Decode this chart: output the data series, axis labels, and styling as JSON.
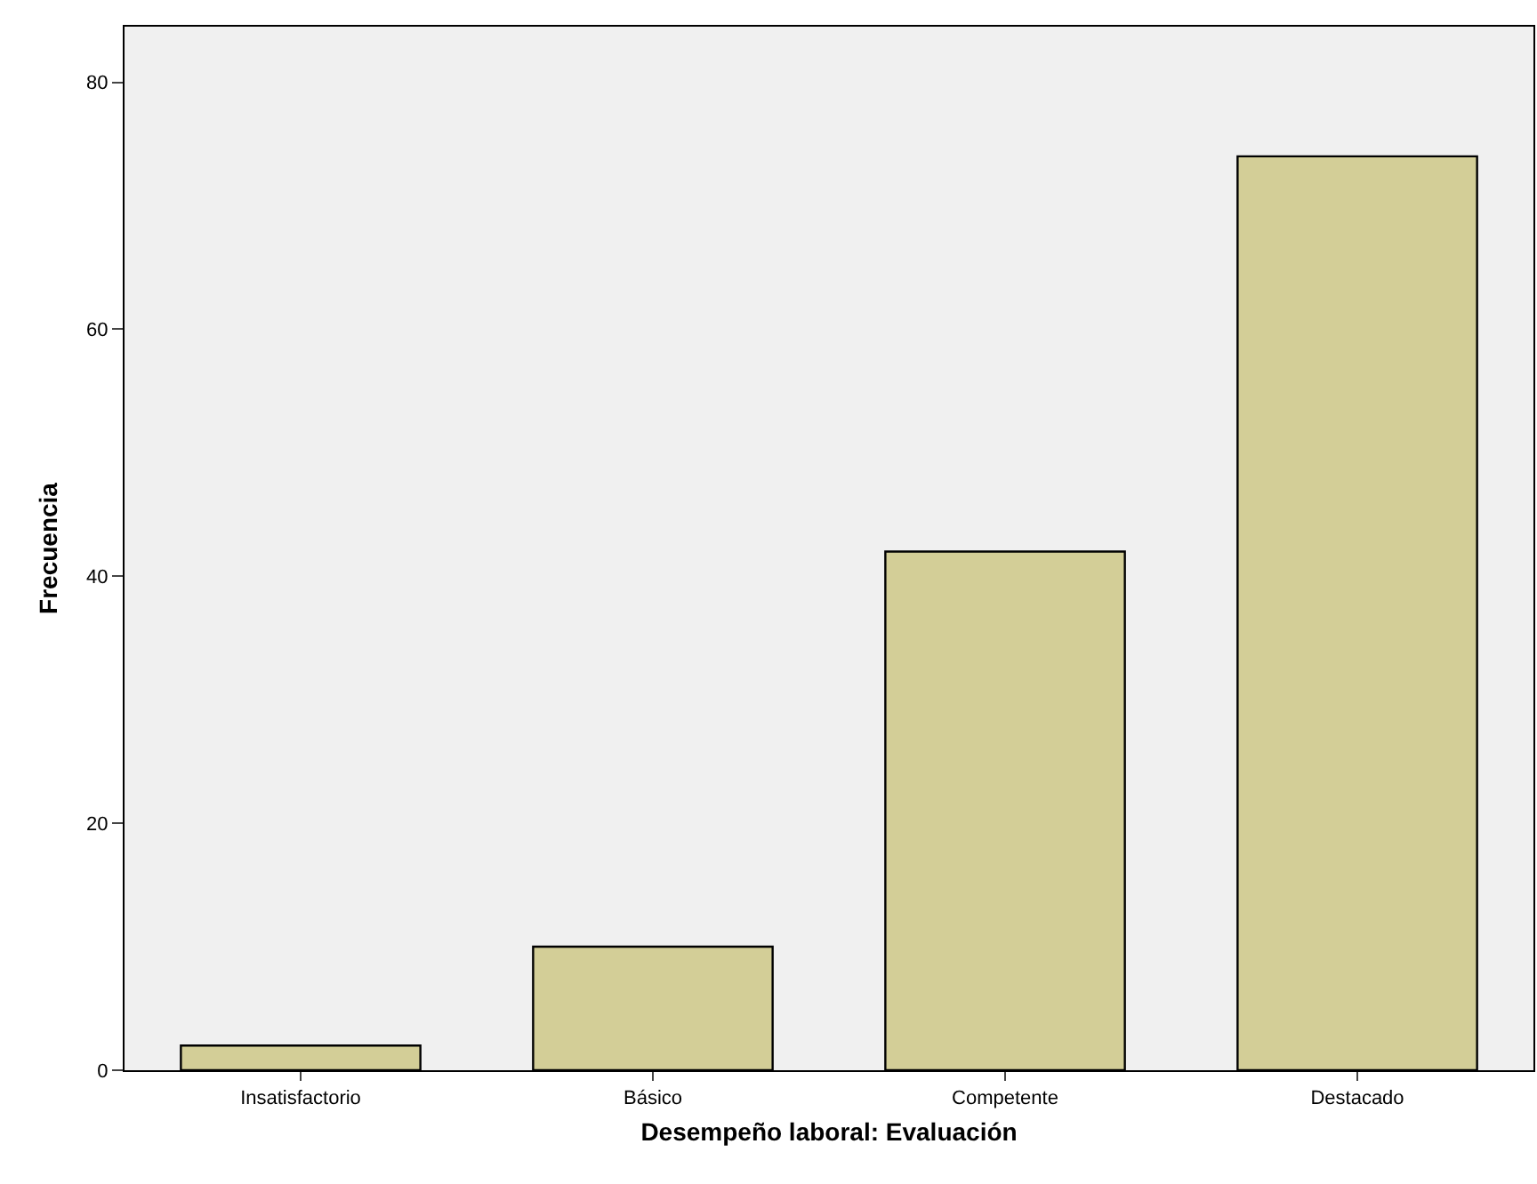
{
  "chart_data": {
    "type": "bar",
    "xlabel": "Desempeño laboral: Evaluación",
    "ylabel": "Frecuencia",
    "categories": [
      "Insatisfactorio",
      "Básico",
      "Competente",
      "Destacado"
    ],
    "values": [
      2,
      10,
      42,
      74
    ],
    "color": "#d3ce97",
    "ylim": [
      0,
      84.5
    ],
    "yticks": [
      0,
      20,
      40,
      60,
      80
    ],
    "grid": false
  }
}
